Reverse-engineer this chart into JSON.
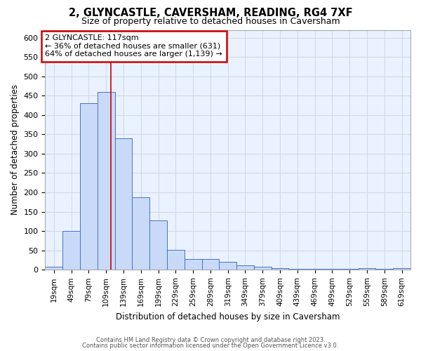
{
  "title": "2, GLYNCASTLE, CAVERSHAM, READING, RG4 7XF",
  "subtitle": "Size of property relative to detached houses in Caversham",
  "xlabel": "Distribution of detached houses by size in Caversham",
  "ylabel": "Number of detached properties",
  "bar_labels": [
    "19sqm",
    "49sqm",
    "79sqm",
    "109sqm",
    "139sqm",
    "169sqm",
    "199sqm",
    "229sqm",
    "259sqm",
    "289sqm",
    "319sqm",
    "349sqm",
    "379sqm",
    "409sqm",
    "439sqm",
    "469sqm",
    "499sqm",
    "529sqm",
    "559sqm",
    "589sqm",
    "619sqm"
  ],
  "bar_heights": [
    8,
    100,
    430,
    460,
    340,
    188,
    128,
    51,
    27,
    27,
    20,
    11,
    8,
    5,
    3,
    3,
    3,
    3,
    5,
    3,
    5
  ],
  "bar_color": "#c9daf8",
  "bar_edgecolor": "#4472c4",
  "ylim": [
    0,
    620
  ],
  "yticks": [
    0,
    50,
    100,
    150,
    200,
    250,
    300,
    350,
    400,
    450,
    500,
    550,
    600
  ],
  "red_line_x": 117,
  "annotation_title": "2 GLYNCASTLE: 117sqm",
  "annotation_line1": "← 36% of detached houses are smaller (631)",
  "annotation_line2": "64% of detached houses are larger (1,139) →",
  "annotation_box_facecolor": "#ffffff",
  "annotation_box_edgecolor": "#cc0000",
  "red_line_color": "#cc0000",
  "grid_color": "#d0dce8",
  "plot_bg_color": "#eaf2ff",
  "fig_bg_color": "#ffffff",
  "footer1": "Contains HM Land Registry data © Crown copyright and database right 2023.",
  "footer2": "Contains public sector information licensed under the Open Government Licence v3.0."
}
